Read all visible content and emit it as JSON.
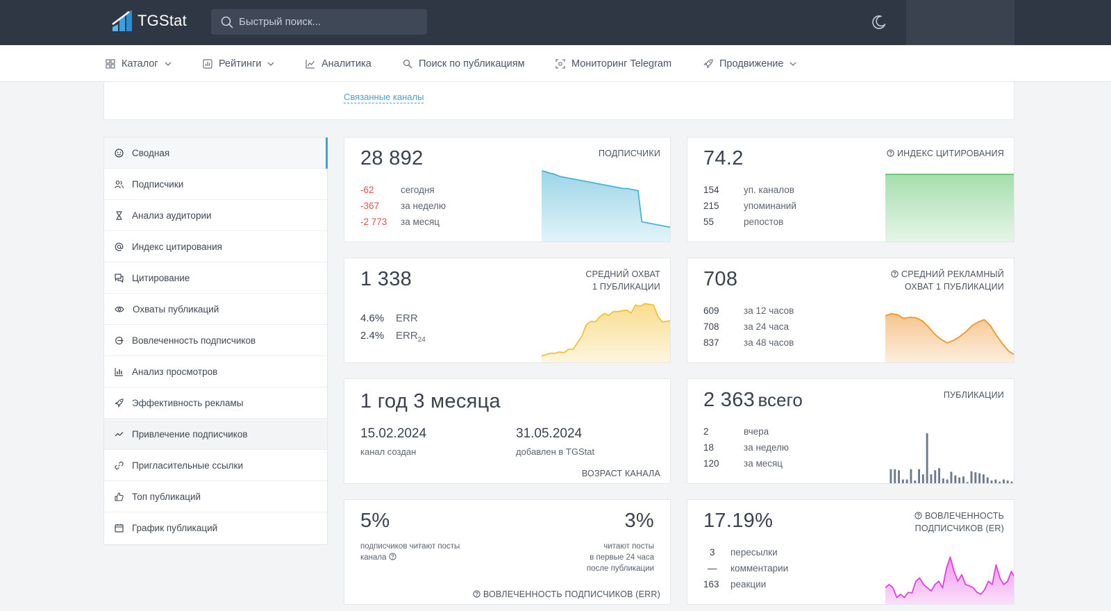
{
  "header": {
    "brand": "TGStat",
    "search_placeholder": "Быстрый поиск..."
  },
  "nav": [
    {
      "label": "Каталог",
      "icon": "grid-icon",
      "dropdown": true
    },
    {
      "label": "Рейтинги",
      "icon": "ratings-icon",
      "dropdown": true
    },
    {
      "label": "Аналитика",
      "icon": "line-chart-icon",
      "dropdown": false
    },
    {
      "label": "Поиск по публикациям",
      "icon": "search-icon",
      "dropdown": false
    },
    {
      "label": "Мониторинг Telegram",
      "icon": "monitor-icon",
      "dropdown": false
    },
    {
      "label": "Продвижение",
      "icon": "rocket-icon",
      "dropdown": true
    }
  ],
  "top_card": {
    "linked_channels": "Связанные каналы"
  },
  "sidebar": [
    {
      "label": "Сводная",
      "icon": "summary-icon",
      "active": true
    },
    {
      "label": "Подписчики",
      "icon": "users-icon"
    },
    {
      "label": "Анализ аудитории",
      "icon": "hourglass-icon"
    },
    {
      "label": "Индекс цитирования",
      "icon": "at-icon"
    },
    {
      "label": "Цитирование",
      "icon": "quote-icon"
    },
    {
      "label": "Охваты публикаций",
      "icon": "eye-icon"
    },
    {
      "label": "Вовлеченность подписчиков",
      "icon": "engagement-icon"
    },
    {
      "label": "Анализ просмотров",
      "icon": "bar-chart-icon"
    },
    {
      "label": "Эффективность рекламы",
      "icon": "rocket-icon"
    },
    {
      "label": "Привлечение подписчиков",
      "icon": "trend-icon",
      "hover": true
    },
    {
      "label": "Пригласительные ссылки",
      "icon": "link-icon"
    },
    {
      "label": "Топ публикаций",
      "icon": "thumb-up-icon"
    },
    {
      "label": "График публикаций",
      "icon": "calendar-icon"
    }
  ],
  "cards": {
    "subscribers": {
      "value": "28 892",
      "label": "ПОДПИСЧИКИ",
      "stats": [
        {
          "v": "-62",
          "l": "сегодня"
        },
        {
          "v": "-367",
          "l": "за неделю"
        },
        {
          "v": "-2 773",
          "l": "за месяц"
        }
      ],
      "color": "#4ab3d6"
    },
    "citation": {
      "value": "74.2",
      "label": "ИНДЕКС ЦИТИРОВАНИЯ",
      "stats": [
        {
          "v": "154",
          "l": "уп. каналов"
        },
        {
          "v": "215",
          "l": "упоминаний"
        },
        {
          "v": "55",
          "l": "репостов"
        }
      ],
      "color": "#5cc46b"
    },
    "reach": {
      "value": "1 338",
      "label_line1": "СРЕДНИЙ ОХВАТ",
      "label_line2": "1 ПУБЛИКАЦИИ",
      "err": "4.6%",
      "err_label": "ERR",
      "err24": "2.4%",
      "err24_label": "ERR",
      "err24_sub": "24",
      "color": "#f3c232"
    },
    "ad_reach": {
      "value": "708",
      "label_line1": "СРЕДНИЙ РЕКЛАМНЫЙ",
      "label_line2": "ОХВАТ 1 ПУБЛИКАЦИИ",
      "stats": [
        {
          "v": "609",
          "l": "за 12 часов"
        },
        {
          "v": "708",
          "l": "за 24 часа"
        },
        {
          "v": "837",
          "l": "за 48 часов"
        }
      ],
      "color": "#f0962e"
    },
    "age": {
      "value": "1 год 3 месяца",
      "created_date": "15.02.2024",
      "created_label": "канал создан",
      "added_date": "31.05.2024",
      "added_label": "добавлен в TGStat",
      "label": "ВОЗРАСТ КАНАЛА"
    },
    "posts": {
      "value": "2 363",
      "value_suffix": "всего",
      "label": "ПУБЛИКАЦИИ",
      "stats": [
        {
          "v": "2",
          "l": "вчера"
        },
        {
          "v": "18",
          "l": "за неделю"
        },
        {
          "v": "120",
          "l": "за месяц"
        }
      ],
      "color": "#6c7a89"
    },
    "err_card": {
      "left_value": "5%",
      "left_desc_line1": "подписчиков читают посты",
      "left_desc_line2": "канала",
      "right_value": "3%",
      "right_desc_line1": "читают посты",
      "right_desc_line2": "в первые 24 часа",
      "right_desc_line3": "после публикации",
      "label": "ВОВЛЕЧЕННОСТЬ ПОДПИСЧИКОВ (ERR)"
    },
    "er_card": {
      "value": "17.19%",
      "label_line1": "ВОВЛЕЧЕННОСТЬ",
      "label_line2": "ПОДПИСЧИКОВ (ER)",
      "stats": [
        {
          "v": "3",
          "l": "пересылки"
        },
        {
          "v": "—",
          "l": "комментарии"
        },
        {
          "v": "163",
          "l": "реакции"
        }
      ],
      "color": "#e23ee0"
    }
  },
  "chart_data": [
    {
      "type": "area",
      "name": "subscribers-sparkline",
      "values": [
        100,
        99,
        97,
        96,
        94,
        92,
        91,
        90,
        89,
        88,
        87,
        86,
        85,
        84,
        83,
        82,
        81,
        80,
        79,
        78,
        77,
        76,
        75,
        75,
        74,
        73,
        72,
        28,
        27,
        26,
        25,
        24,
        23,
        22,
        21,
        20
      ]
    },
    {
      "type": "area",
      "name": "citation-sparkline",
      "values": [
        95,
        95,
        95,
        95,
        95,
        95,
        95,
        95,
        95,
        95,
        95,
        95,
        95,
        95,
        95,
        95,
        95,
        95,
        95,
        95
      ]
    },
    {
      "type": "area",
      "name": "reach-sparkline",
      "values": [
        10,
        12,
        14,
        14,
        16,
        15,
        20,
        20,
        30,
        40,
        58,
        63,
        62,
        70,
        75,
        72,
        78,
        78,
        79,
        80,
        76,
        88,
        86,
        90,
        89,
        88,
        70,
        62,
        63,
        64
      ]
    },
    {
      "type": "area",
      "name": "ad-reach-sparkline",
      "values": [
        76,
        80,
        78,
        72,
        74,
        73,
        68,
        58,
        46,
        38,
        32,
        36,
        42,
        50,
        60,
        66,
        70,
        60,
        44,
        30,
        18,
        12
      ]
    },
    {
      "type": "bar",
      "name": "posts-sparkline",
      "values": [
        30,
        30,
        28,
        10,
        10,
        30,
        8,
        30,
        20,
        100,
        20,
        28,
        32,
        12,
        10,
        25,
        18,
        14,
        16,
        5,
        26,
        24,
        22,
        20,
        14,
        8,
        10,
        6,
        10,
        8,
        6
      ]
    },
    {
      "type": "area",
      "name": "er-sparkline",
      "values": [
        25,
        30,
        25,
        10,
        15,
        10,
        18,
        17,
        35,
        40,
        30,
        25,
        20,
        30,
        35,
        25,
        55,
        72,
        50,
        35,
        45,
        30,
        28,
        25,
        18,
        15,
        22,
        35,
        30,
        60,
        40,
        30,
        35,
        50,
        40
      ]
    }
  ]
}
